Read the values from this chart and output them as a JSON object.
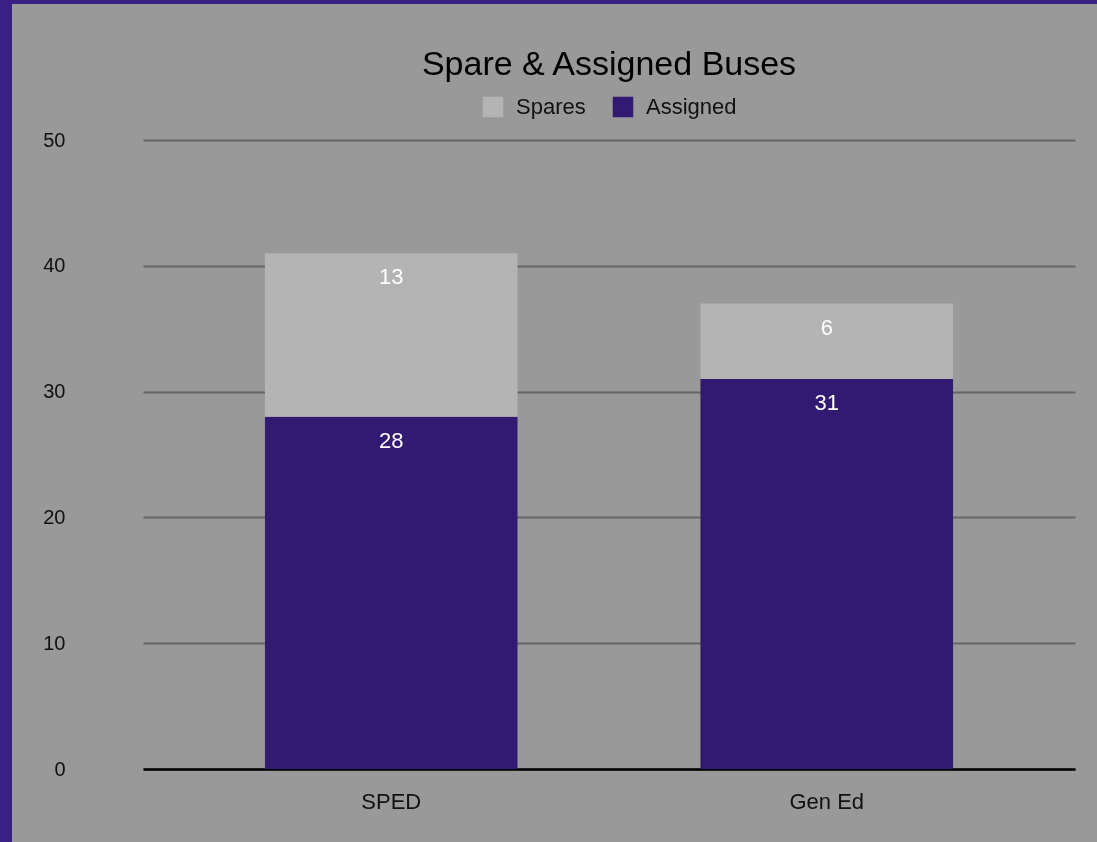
{
  "chart_data": {
    "type": "bar",
    "title": "Spare & Assigned Buses",
    "categories": [
      "SPED",
      "Gen Ed"
    ],
    "series": [
      {
        "name": "Assigned",
        "color": "#321a72",
        "values": [
          28,
          31
        ]
      },
      {
        "name": "Spares",
        "color": "#b4b4b4",
        "values": [
          13,
          6
        ]
      }
    ],
    "stacked": true,
    "ylim": [
      0,
      50
    ],
    "yticks": [
      0,
      10,
      20,
      30,
      40,
      50
    ],
    "grid": "y",
    "legend": "top",
    "data_labels": true
  }
}
